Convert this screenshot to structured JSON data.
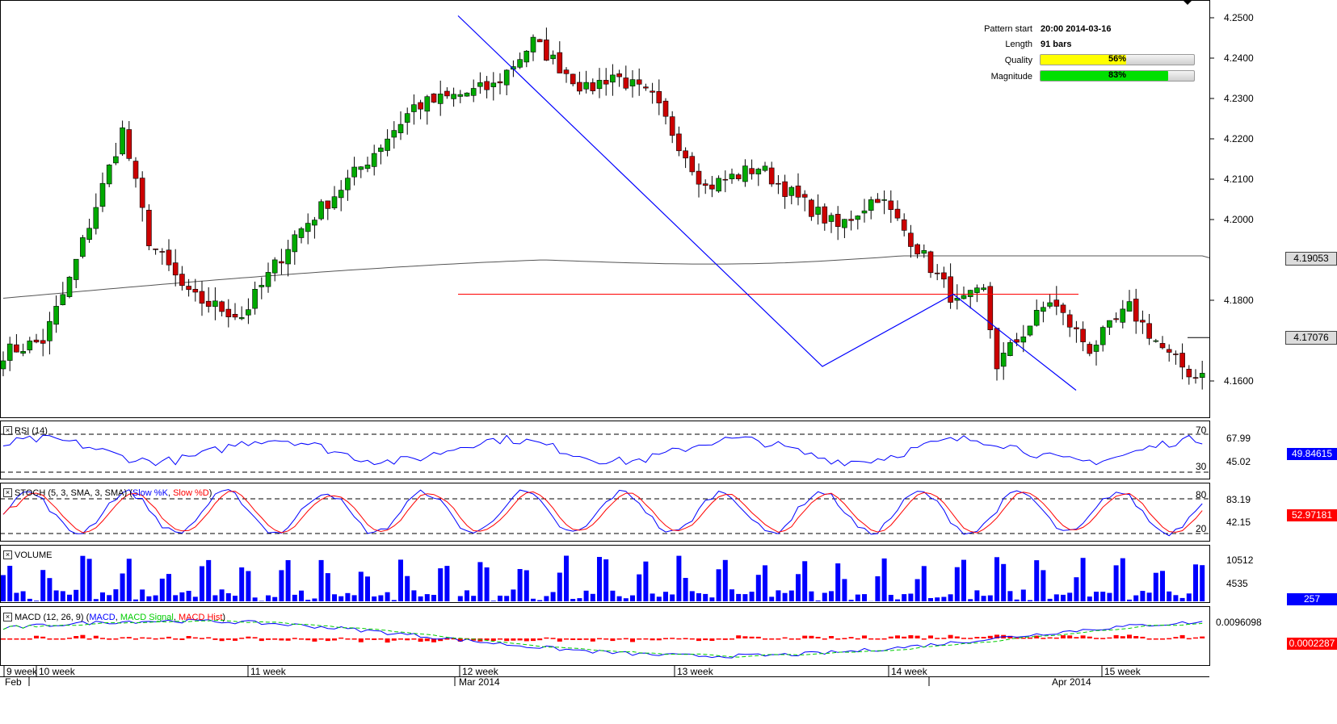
{
  "pattern_info": {
    "rows": [
      {
        "label": "Pattern start",
        "value": "20:00 2014-03-16"
      },
      {
        "label": "Length",
        "value": "91 bars"
      }
    ],
    "quality": {
      "label": "Quality",
      "text": "56%",
      "value": 0.56,
      "color": "#ffff00"
    },
    "magnitude": {
      "label": "Magnitude",
      "text": "83%",
      "value": 0.83,
      "color": "#00e000"
    }
  },
  "price_axis": {
    "ticks": [
      "4.2500",
      "4.2400",
      "4.2300",
      "4.2200",
      "4.2100",
      "4.2000",
      "4.1800",
      "4.1600"
    ],
    "ma_box": "4.19053",
    "last_box": "4.17076"
  },
  "panels": {
    "rsi": {
      "title": "RSI (14)",
      "levels": [
        "70",
        "30"
      ],
      "axis_labels": [
        "67.99",
        "45.02"
      ],
      "box": "49.84615"
    },
    "stoch": {
      "title": "STOCH (5, 3, SMA, 3, SMA)",
      "series_k": "Slow %K",
      "series_d": "Slow %D",
      "levels": [
        "80",
        "20"
      ],
      "axis_labels": [
        "83.19",
        "42.15"
      ],
      "box": "52.97181"
    },
    "volume": {
      "title": "VOLUME",
      "axis_labels": [
        "10512",
        "4535"
      ],
      "box": "257"
    },
    "macd": {
      "title": "MACD (12, 26, 9)",
      "series_macd": "MACD",
      "series_signal": "MACD Signal",
      "series_hist": "MACD Hist",
      "axis_labels": [
        "0.0096098"
      ],
      "box": "0.0002287"
    }
  },
  "time_axis": {
    "week_labels": [
      "9 week",
      "10 week",
      "11 week",
      "12 week",
      "13 week",
      "14 week",
      "15 week"
    ],
    "month_labels": [
      "Feb",
      "Mar 2014",
      "Apr 2014"
    ]
  },
  "colors": {
    "bull": "#00aa00",
    "bear": "#cc0000",
    "ma": "#555555",
    "pattern": "#0000ff",
    "resistance": "#ff0000",
    "rsi": "#0000ff",
    "stoch_k": "#0000ff",
    "stoch_d": "#ff0000",
    "volume": "#0000ff",
    "macd": "#0000ff",
    "signal": "#00cc00",
    "hist": "#ff0000"
  },
  "chart_data": {
    "type": "candlestick",
    "symbol_timeframe_note": "",
    "n_bars": 182,
    "price_ylim": [
      4.154,
      4.254
    ],
    "anchors": {
      "close": [
        [
          0,
          4.167
        ],
        [
          6,
          4.17
        ],
        [
          10,
          4.185
        ],
        [
          18,
          4.222
        ],
        [
          22,
          4.195
        ],
        [
          28,
          4.181
        ],
        [
          36,
          4.176
        ],
        [
          44,
          4.196
        ],
        [
          54,
          4.213
        ],
        [
          62,
          4.228
        ],
        [
          74,
          4.233
        ],
        [
          80,
          4.244
        ],
        [
          88,
          4.232
        ],
        [
          92,
          4.236
        ],
        [
          98,
          4.23
        ],
        [
          106,
          4.208
        ],
        [
          114,
          4.213
        ],
        [
          120,
          4.205
        ],
        [
          126,
          4.198
        ],
        [
          132,
          4.206
        ],
        [
          138,
          4.193
        ],
        [
          144,
          4.179
        ],
        [
          148,
          4.182
        ],
        [
          150,
          4.164
        ],
        [
          158,
          4.18
        ],
        [
          164,
          4.168
        ],
        [
          170,
          4.178
        ],
        [
          176,
          4.166
        ],
        [
          180,
          4.161
        ],
        [
          184,
          4.17
        ],
        [
          192,
          4.172
        ],
        [
          196,
          4.17
        ]
      ],
      "volume_range": [
        0,
        12000
      ]
    },
    "pattern_line": [
      [
        567,
        4.2505
      ],
      [
        1018,
        4.1636
      ],
      [
        1180,
        4.1815
      ],
      [
        1332,
        4.1577
      ]
    ],
    "resistance_line": {
      "x": [
        567,
        1335
      ],
      "y": 4.1815
    },
    "moving_average_level_now": 4.19053,
    "last_price": 4.17076,
    "indicator_levels": {
      "rsi": [
        70,
        30
      ],
      "stoch": [
        80,
        20
      ]
    }
  }
}
